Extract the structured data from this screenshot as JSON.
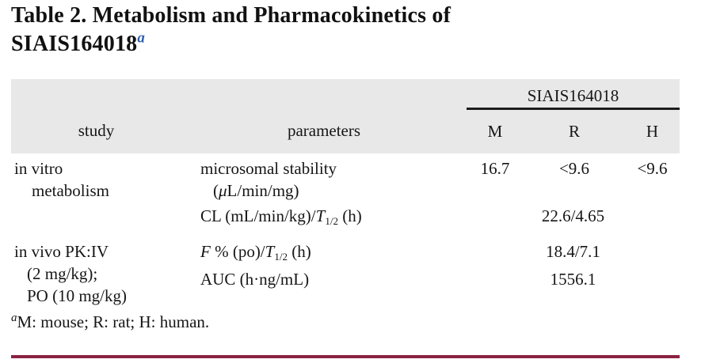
{
  "title": {
    "line1": "Table 2. Metabolism and Pharmacokinetics of",
    "line2": "SIAIS164018",
    "footnote_marker": "a"
  },
  "table": {
    "group_header": "SIAIS164018",
    "columns": {
      "study": "study",
      "parameters": "parameters",
      "m": "M",
      "r": "R",
      "h": "H"
    },
    "rows": {
      "invitro": {
        "study_line1": "in vitro",
        "study_line2": "metabolism",
        "microsomal_line1": "microsomal stability",
        "microsomal_open": "(",
        "microsomal_mu": "μ",
        "microsomal_rest": "L/min/mg)",
        "value_m": "16.7",
        "value_r": "<9.6",
        "value_h": "<9.6",
        "cl_prefix": "CL (mL/min/kg)/",
        "cl_t": "T",
        "cl_sub": "1/2",
        "cl_suffix": " (h)",
        "cl_value": "22.6/4.65"
      },
      "invivo": {
        "study_line1": "in vivo PK:IV",
        "study_line2": "(2 mg/kg);",
        "study_line3": "PO (10 mg/kg)",
        "f_label_f": "F",
        "f_label_mid": " % (po)/",
        "f_label_t": "T",
        "f_label_sub": "1/2",
        "f_label_suffix": " (h)",
        "f_value": "18.4/7.1",
        "auc_label": "AUC (h·ng/mL)",
        "auc_value": "1556.1"
      }
    }
  },
  "footnote": {
    "marker": "a",
    "text": "M: mouse; R: rat; H: human."
  },
  "colors": {
    "accent_blue": "#3060ae",
    "bottom_rule_maroon": "#8b2342",
    "header_band_gray": "#e8e8e8",
    "header_rule_black": "#1c1c1c"
  }
}
